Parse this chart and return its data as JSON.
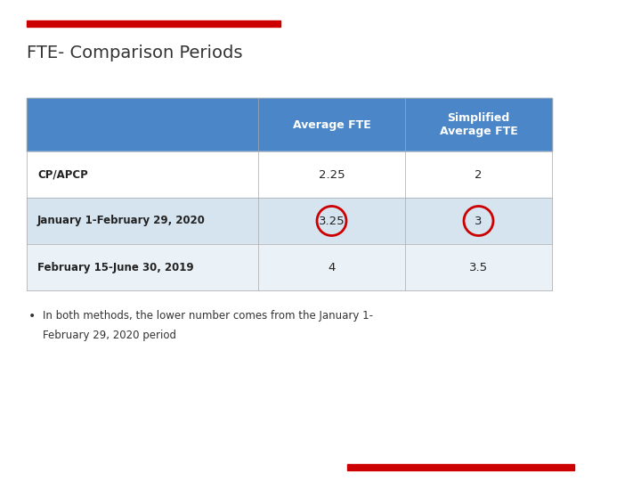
{
  "title": "FTE- Comparison Periods",
  "title_fontsize": 14,
  "title_color": "#333333",
  "top_bar_color": "#cc0000",
  "bottom_bar_color": "#cc0000",
  "header_bg_color": "#4a86c8",
  "header_text_color": "#ffffff",
  "row_bg_colors": [
    "#ffffff",
    "#d6e4f0",
    "#eaf2f8"
  ],
  "col_headers": [
    "Average FTE",
    "Simplified\nAverage FTE"
  ],
  "row_labels": [
    "CP/APCP",
    "January 1-February 29, 2020",
    "February 15-June 30, 2019"
  ],
  "data": [
    [
      "2.25",
      "2"
    ],
    [
      "3.25",
      "3"
    ],
    [
      "4",
      "3.5"
    ]
  ],
  "circled_cells": [
    [
      1,
      0
    ],
    [
      1,
      1
    ]
  ],
  "circle_color": "#cc0000",
  "bullet_text_line1": "In both methods, the lower number comes from the January 1-",
  "bullet_text_line2": "February 29, 2020 period",
  "font_family": "DejaVu Sans"
}
